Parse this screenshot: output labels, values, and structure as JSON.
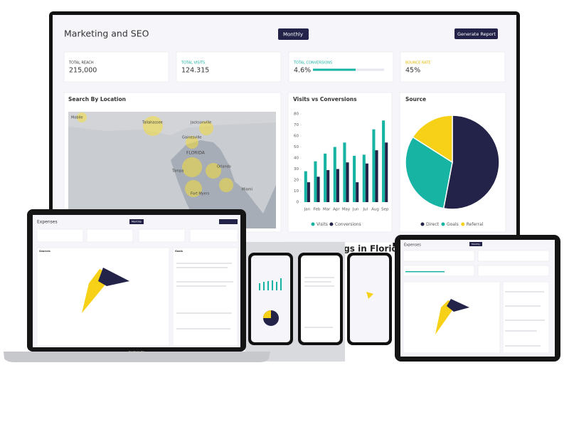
{
  "header": {
    "title": "Marketing and SEO",
    "period_button": "Monthly",
    "report_button": "Generate Report"
  },
  "kpis": [
    {
      "label": "TOTAL REACH",
      "value": "215,000"
    },
    {
      "label": "TOTAL VISITS",
      "value": "124.315"
    },
    {
      "label": "TOTAL CONVERSIONS",
      "value": "4.6%",
      "progress": 60
    },
    {
      "label": "BOUNCE RATE",
      "value": "45%"
    }
  ],
  "map": {
    "title": "Search By Location",
    "labels": [
      "Mobile",
      "Tallahassee",
      "Jacksonville",
      "Gainesville",
      "FLORIDA",
      "Orlando",
      "Tampa",
      "Fort Myers",
      "Miami"
    ]
  },
  "bar_chart": {
    "type": "bar",
    "title": "Visits vs Conversions",
    "categories": [
      "Jan",
      "Feb",
      "Mar",
      "Apr",
      "May",
      "Jun",
      "Jul",
      "Aug",
      "Sep"
    ],
    "series": [
      {
        "name": "Visits",
        "color": "#17b3a3",
        "values": [
          28,
          37,
          44,
          50,
          54,
          42,
          43,
          66,
          74
        ]
      },
      {
        "name": "Conversions",
        "color": "#23234a",
        "values": [
          18,
          23,
          29,
          30,
          36,
          18,
          35,
          47,
          54
        ]
      }
    ],
    "ylim": [
      0,
      80
    ],
    "yticks": [
      0,
      10,
      20,
      30,
      40,
      50,
      60,
      70,
      80
    ]
  },
  "pie_chart": {
    "type": "pie",
    "title": "Source",
    "categories": [
      "Direct",
      "Goals",
      "Referral"
    ],
    "values": [
      53,
      31,
      16
    ],
    "colors": [
      "#23234a",
      "#17b3a3",
      "#f7d117"
    ]
  },
  "trending": {
    "title": "Trending Tags in Florida"
  },
  "laptop": {
    "title": "Expenses",
    "period_button": "Monthly",
    "left_panel": "Sources",
    "right_panel": "Goals",
    "brand": "MacBook Pro"
  },
  "tablet": {
    "title": "Expenses",
    "period_button": "Monthly"
  }
}
